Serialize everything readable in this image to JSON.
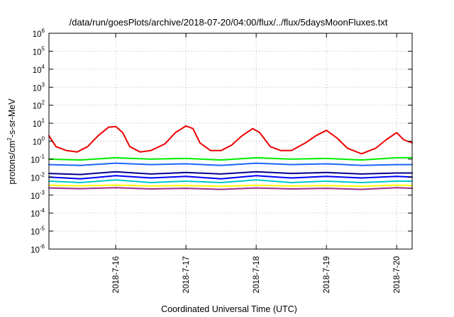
{
  "chart_data": {
    "type": "line",
    "title": "/data/run/goesPlots/archive/2018-07-20/04:00/flux/../flux/5daysMoonFluxes.txt",
    "xlabel": "Coordinated Universal Time (UTC)",
    "ylabel_parts": [
      "protons/cm",
      "2",
      "-s-sr-MeV"
    ],
    "y_scale": "log",
    "ylim_exp": [
      -6,
      6
    ],
    "y_tick_exponents": [
      -6,
      -5,
      -4,
      -3,
      -2,
      -1,
      0,
      1,
      2,
      3,
      4,
      5,
      6
    ],
    "y_tick_base": "10",
    "xlim_days": [
      15.05,
      20.22
    ],
    "x_ticks": [
      {
        "label": "2018-7-16",
        "day": 16
      },
      {
        "label": "2018-7-17",
        "day": 17
      },
      {
        "label": "2018-7-18",
        "day": 18
      },
      {
        "label": "2018-7-19",
        "day": 19
      },
      {
        "label": "2018-7-20",
        "day": 20
      }
    ],
    "grid": true,
    "legend": "none",
    "series": [
      {
        "color": "#9b2d8a",
        "x": [
          15.05,
          15.5,
          16.0,
          16.5,
          17.0,
          17.5,
          18.0,
          18.5,
          19.0,
          19.5,
          20.0,
          20.22
        ],
        "y": [
          0.0025,
          0.0023,
          0.0026,
          0.0022,
          0.0024,
          0.0021,
          0.0025,
          0.0022,
          0.0024,
          0.0021,
          0.0026,
          0.0024
        ]
      },
      {
        "color": "#ffff00",
        "x": [
          15.05,
          15.5,
          16.0,
          16.5,
          17.0,
          17.5,
          18.0,
          18.5,
          19.0,
          19.5,
          20.0,
          20.22
        ],
        "y": [
          0.0035,
          0.0033,
          0.0036,
          0.0032,
          0.0034,
          0.0031,
          0.0035,
          0.0032,
          0.0034,
          0.0031,
          0.0036,
          0.0034
        ]
      },
      {
        "color": "#00c8c8",
        "x": [
          15.05,
          15.5,
          16.0,
          16.5,
          17.0,
          17.5,
          18.0,
          18.5,
          19.0,
          19.5,
          20.0,
          20.22
        ],
        "y": [
          0.006,
          0.005,
          0.007,
          0.005,
          0.006,
          0.005,
          0.007,
          0.005,
          0.006,
          0.005,
          0.006,
          0.006
        ]
      },
      {
        "color": "#0000ff",
        "x": [
          15.05,
          15.5,
          16.0,
          16.5,
          17.0,
          17.5,
          18.0,
          18.5,
          19.0,
          19.5,
          20.0,
          20.22
        ],
        "y": [
          0.01,
          0.008,
          0.012,
          0.009,
          0.011,
          0.008,
          0.012,
          0.009,
          0.011,
          0.009,
          0.011,
          0.01
        ]
      },
      {
        "color": "#00008b",
        "x": [
          15.05,
          15.5,
          16.0,
          16.5,
          17.0,
          17.5,
          18.0,
          18.5,
          19.0,
          19.5,
          20.0,
          20.22
        ],
        "y": [
          0.016,
          0.014,
          0.02,
          0.015,
          0.018,
          0.015,
          0.02,
          0.016,
          0.018,
          0.015,
          0.017,
          0.017
        ]
      },
      {
        "color": "#1e64ff",
        "x": [
          15.05,
          15.5,
          16.0,
          16.5,
          17.0,
          17.5,
          18.0,
          18.5,
          19.0,
          19.5,
          20.0,
          20.22
        ],
        "y": [
          0.05,
          0.045,
          0.06,
          0.05,
          0.055,
          0.045,
          0.06,
          0.05,
          0.055,
          0.045,
          0.05,
          0.05
        ]
      },
      {
        "color": "#00ee00",
        "x": [
          15.05,
          15.5,
          16.0,
          16.5,
          17.0,
          17.5,
          18.0,
          18.5,
          19.0,
          19.5,
          20.0,
          20.22
        ],
        "y": [
          0.1,
          0.09,
          0.12,
          0.1,
          0.11,
          0.09,
          0.12,
          0.1,
          0.11,
          0.09,
          0.12,
          0.12
        ]
      },
      {
        "color": "#ee0000",
        "x": [
          15.05,
          15.15,
          15.3,
          15.45,
          15.6,
          15.75,
          15.9,
          16.0,
          16.1,
          16.2,
          16.35,
          16.5,
          16.7,
          16.85,
          17.0,
          17.1,
          17.2,
          17.35,
          17.5,
          17.65,
          17.8,
          17.95,
          18.05,
          18.2,
          18.35,
          18.5,
          18.7,
          18.85,
          19.0,
          19.15,
          19.3,
          19.5,
          19.7,
          19.85,
          20.0,
          20.1,
          20.22
        ],
        "y": [
          2,
          0.5,
          0.3,
          0.25,
          0.5,
          2,
          6,
          6.5,
          3,
          0.5,
          0.25,
          0.3,
          0.7,
          3,
          7,
          5,
          0.8,
          0.3,
          0.3,
          0.6,
          2,
          5,
          3,
          0.5,
          0.3,
          0.3,
          0.8,
          2,
          4,
          1.5,
          0.4,
          0.2,
          0.4,
          1.2,
          3,
          1.2,
          0.8
        ]
      }
    ]
  }
}
